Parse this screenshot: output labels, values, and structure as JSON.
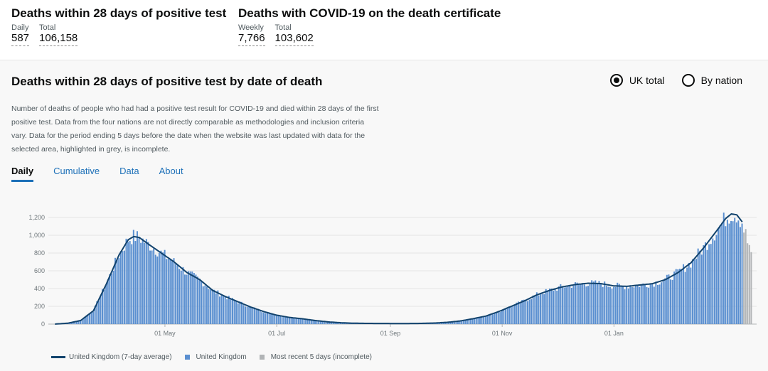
{
  "headline_left": {
    "title": "Deaths within 28 days of positive test",
    "stat1_label": "Daily",
    "stat1_value": "587",
    "stat2_label": "Total",
    "stat2_value": "106,158"
  },
  "headline_right": {
    "title": "Deaths with COVID-19 on the death certificate",
    "stat1_label": "Weekly",
    "stat1_value": "7,766",
    "stat2_label": "Total",
    "stat2_value": "103,602"
  },
  "card": {
    "title": "Deaths within 28 days of positive test by date of death",
    "radio_uk": "UK total",
    "radio_nation": "By nation",
    "description": "Number of deaths of people who had had a positive test result for COVID-19 and died within 28 days of the first positive test. Data from the four nations are not directly comparable as methodologies and inclusion criteria vary. Data for the period ending 5 days before the date when the website was last updated with data for the selected area, highlighted in grey, is incomplete.",
    "tabs": [
      "Daily",
      "Cumulative",
      "Data",
      "About"
    ]
  },
  "colors": {
    "bar": "#5a8fd0",
    "line": "#12436d",
    "incomplete": "#b1b4b6"
  },
  "chart_data": {
    "type": "bar",
    "x_start": "2020-03-02",
    "x_ticks": [
      "01 May",
      "01 Jul",
      "01 Sep",
      "01 Nov",
      "01 Jan"
    ],
    "y_ticks": [
      "0",
      "200",
      "400",
      "600",
      "800",
      "1,000",
      "1,200"
    ],
    "ylim": [
      0,
      1300
    ],
    "grid": "horizontal",
    "legend_position": "bottom",
    "series": [
      {
        "name": "United Kingdom (7-day average)",
        "type": "line"
      },
      {
        "name": "United Kingdom",
        "type": "bar"
      },
      {
        "name": "Most recent 5 days (incomplete)",
        "type": "bar"
      }
    ],
    "anchors": [
      [
        0,
        0
      ],
      [
        7,
        10
      ],
      [
        14,
        40
      ],
      [
        21,
        150
      ],
      [
        28,
        450
      ],
      [
        35,
        780
      ],
      [
        40,
        950
      ],
      [
        43,
        985
      ],
      [
        46,
        975
      ],
      [
        51,
        900
      ],
      [
        58,
        800
      ],
      [
        65,
        700
      ],
      [
        72,
        580
      ],
      [
        79,
        500
      ],
      [
        86,
        380
      ],
      [
        93,
        310
      ],
      [
        100,
        250
      ],
      [
        107,
        190
      ],
      [
        114,
        140
      ],
      [
        121,
        100
      ],
      [
        128,
        75
      ],
      [
        135,
        60
      ],
      [
        142,
        40
      ],
      [
        149,
        25
      ],
      [
        156,
        15
      ],
      [
        163,
        10
      ],
      [
        170,
        8
      ],
      [
        180,
        7
      ],
      [
        190,
        6
      ],
      [
        200,
        8
      ],
      [
        207,
        12
      ],
      [
        214,
        20
      ],
      [
        221,
        35
      ],
      [
        228,
        60
      ],
      [
        235,
        90
      ],
      [
        242,
        140
      ],
      [
        249,
        200
      ],
      [
        256,
        260
      ],
      [
        263,
        330
      ],
      [
        270,
        380
      ],
      [
        277,
        420
      ],
      [
        284,
        445
      ],
      [
        291,
        460
      ],
      [
        298,
        455
      ],
      [
        305,
        430
      ],
      [
        312,
        425
      ],
      [
        319,
        440
      ],
      [
        326,
        455
      ],
      [
        333,
        500
      ],
      [
        340,
        580
      ],
      [
        347,
        690
      ],
      [
        354,
        860
      ],
      [
        361,
        1050
      ],
      [
        366,
        1190
      ],
      [
        369,
        1240
      ],
      [
        372,
        1230
      ],
      [
        375,
        1150
      ]
    ],
    "incomplete": [
      1030,
      1070,
      910,
      890,
      810
    ]
  }
}
